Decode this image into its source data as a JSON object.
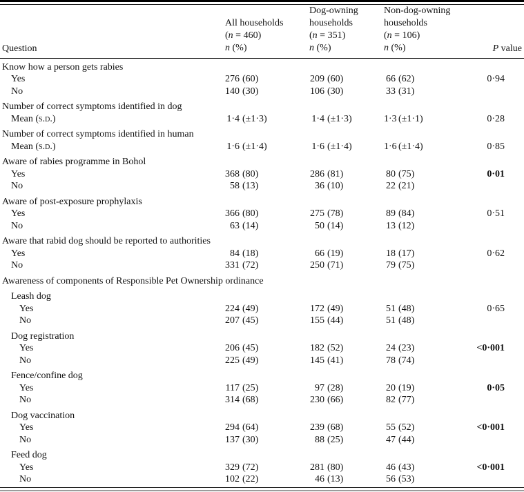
{
  "header": {
    "question": "Question",
    "p_value": [
      {
        "t": "P",
        "i": true
      },
      {
        "t": " value"
      }
    ],
    "cols": [
      {
        "lines": [
          [
            {
              "t": "All households"
            }
          ],
          [
            {
              "t": "("
            },
            {
              "t": "n",
              "i": true
            },
            {
              "t": " = 460)"
            }
          ],
          [
            {
              "t": "n",
              "i": true
            },
            {
              "t": " (%)"
            }
          ]
        ]
      },
      {
        "lines": [
          [
            {
              "t": "Dog-owning"
            }
          ],
          [
            {
              "t": "households"
            }
          ],
          [
            {
              "t": "("
            },
            {
              "t": "n",
              "i": true
            },
            {
              "t": " = 351)"
            }
          ],
          [
            {
              "t": "n",
              "i": true
            },
            {
              "t": " (%)"
            }
          ]
        ]
      },
      {
        "lines": [
          [
            {
              "t": "Non-dog-owning"
            }
          ],
          [
            {
              "t": "households"
            }
          ],
          [
            {
              "t": "("
            },
            {
              "t": "n",
              "i": true
            },
            {
              "t": " = 106)"
            }
          ],
          [
            {
              "t": "n",
              "i": true
            },
            {
              "t": " (%)"
            }
          ]
        ]
      }
    ]
  },
  "table": {
    "rows": [
      {
        "kind": "section",
        "indent": 0,
        "label": "Know how a person gets rabies"
      },
      {
        "kind": "data",
        "indent": 1,
        "label": "Yes",
        "cells": [
          [
            "276",
            "(60)"
          ],
          [
            "209",
            "(60)"
          ],
          [
            "66",
            "(62)"
          ]
        ],
        "p": "0·94",
        "pBold": false
      },
      {
        "kind": "data",
        "indent": 1,
        "label": "No",
        "cells": [
          [
            "140",
            "(30)"
          ],
          [
            "106",
            "(30)"
          ],
          [
            "33",
            "(31)"
          ]
        ],
        "p": "",
        "pBold": false
      },
      {
        "kind": "section",
        "indent": 0,
        "label": "Number of correct symptoms identified in dog"
      },
      {
        "kind": "data",
        "indent": 1,
        "label": [
          {
            "t": "Mean ("
          },
          {
            "t": "s.d.",
            "sc": true
          },
          {
            "t": ")"
          }
        ],
        "cells": [
          [
            "1·4",
            "(±1·3)"
          ],
          [
            "1·4",
            "(±1·3)"
          ],
          [
            "1·3",
            "(±1·1)"
          ]
        ],
        "p": "0·28",
        "pBold": false
      },
      {
        "kind": "section",
        "indent": 0,
        "label": "Number of correct symptoms identified in human"
      },
      {
        "kind": "data",
        "indent": 1,
        "label": [
          {
            "t": "Mean ("
          },
          {
            "t": "s.d.",
            "sc": true
          },
          {
            "t": ")"
          }
        ],
        "cells": [
          [
            "1·6",
            "(±1·4)"
          ],
          [
            "1·6",
            "(±1·4)"
          ],
          [
            "1·6",
            "(±1·4)"
          ]
        ],
        "p": "0·85",
        "pBold": false
      },
      {
        "kind": "section",
        "indent": 0,
        "label": "Aware of rabies programme in Bohol"
      },
      {
        "kind": "data",
        "indent": 1,
        "label": "Yes",
        "cells": [
          [
            "368",
            "(80)"
          ],
          [
            "286",
            "(81)"
          ],
          [
            "80",
            "(75)"
          ]
        ],
        "p": "0·01",
        "pBold": true
      },
      {
        "kind": "data",
        "indent": 1,
        "label": "No",
        "cells": [
          [
            "58",
            "(13)"
          ],
          [
            "36",
            "(10)"
          ],
          [
            "22",
            "(21)"
          ]
        ],
        "p": "",
        "pBold": false
      },
      {
        "kind": "section",
        "indent": 0,
        "label": "Aware of post-exposure prophylaxis"
      },
      {
        "kind": "data",
        "indent": 1,
        "label": "Yes",
        "cells": [
          [
            "366",
            "(80)"
          ],
          [
            "275",
            "(78)"
          ],
          [
            "89",
            "(84)"
          ]
        ],
        "p": "0·51",
        "pBold": false
      },
      {
        "kind": "data",
        "indent": 1,
        "label": "No",
        "cells": [
          [
            "63",
            "(14)"
          ],
          [
            "50",
            "(14)"
          ],
          [
            "13",
            "(12)"
          ]
        ],
        "p": "",
        "pBold": false
      },
      {
        "kind": "section",
        "indent": 0,
        "label": "Aware that rabid dog should be reported to authorities"
      },
      {
        "kind": "data",
        "indent": 1,
        "label": "Yes",
        "cells": [
          [
            "84",
            "(18)"
          ],
          [
            "66",
            "(19)"
          ],
          [
            "18",
            "(17)"
          ]
        ],
        "p": "0·62",
        "pBold": false
      },
      {
        "kind": "data",
        "indent": 1,
        "label": "No",
        "cells": [
          [
            "331",
            "(72)"
          ],
          [
            "250",
            "(71)"
          ],
          [
            "79",
            "(75)"
          ]
        ],
        "p": "",
        "pBold": false
      },
      {
        "kind": "section",
        "indent": 0,
        "label": "Awareness of components of Responsible Pet Ownership ordinance"
      },
      {
        "kind": "section",
        "indent": 1,
        "label": "Leash dog"
      },
      {
        "kind": "data",
        "indent": 2,
        "label": "Yes",
        "cells": [
          [
            "224",
            "(49)"
          ],
          [
            "172",
            "(49)"
          ],
          [
            "51",
            "(48)"
          ]
        ],
        "p": "0·65",
        "pBold": false
      },
      {
        "kind": "data",
        "indent": 2,
        "label": "No",
        "cells": [
          [
            "207",
            "(45)"
          ],
          [
            "155",
            "(44)"
          ],
          [
            "51",
            "(48)"
          ]
        ],
        "p": "",
        "pBold": false
      },
      {
        "kind": "section",
        "indent": 1,
        "label": "Dog registration"
      },
      {
        "kind": "data",
        "indent": 2,
        "label": "Yes",
        "cells": [
          [
            "206",
            "(45)"
          ],
          [
            "182",
            "(52)"
          ],
          [
            "24",
            "(23)"
          ]
        ],
        "p": "<0·001",
        "pBold": true
      },
      {
        "kind": "data",
        "indent": 2,
        "label": "No",
        "cells": [
          [
            "225",
            "(49)"
          ],
          [
            "145",
            "(41)"
          ],
          [
            "78",
            "(74)"
          ]
        ],
        "p": "",
        "pBold": false
      },
      {
        "kind": "section",
        "indent": 1,
        "label": "Fence/confine dog"
      },
      {
        "kind": "data",
        "indent": 2,
        "label": "Yes",
        "cells": [
          [
            "117",
            "(25)"
          ],
          [
            "97",
            "(28)"
          ],
          [
            "20",
            "(19)"
          ]
        ],
        "p": "0·05",
        "pBold": true
      },
      {
        "kind": "data",
        "indent": 2,
        "label": "No",
        "cells": [
          [
            "314",
            "(68)"
          ],
          [
            "230",
            "(66)"
          ],
          [
            "82",
            "(77)"
          ]
        ],
        "p": "",
        "pBold": false
      },
      {
        "kind": "section",
        "indent": 1,
        "label": "Dog vaccination"
      },
      {
        "kind": "data",
        "indent": 2,
        "label": "Yes",
        "cells": [
          [
            "294",
            "(64)"
          ],
          [
            "239",
            "(68)"
          ],
          [
            "55",
            "(52)"
          ]
        ],
        "p": "<0·001",
        "pBold": true
      },
      {
        "kind": "data",
        "indent": 2,
        "label": "No",
        "cells": [
          [
            "137",
            "(30)"
          ],
          [
            "88",
            "(25)"
          ],
          [
            "47",
            "(44)"
          ]
        ],
        "p": "",
        "pBold": false
      },
      {
        "kind": "section",
        "indent": 1,
        "label": "Feed dog"
      },
      {
        "kind": "data",
        "indent": 2,
        "label": "Yes",
        "cells": [
          [
            "329",
            "(72)"
          ],
          [
            "281",
            "(80)"
          ],
          [
            "46",
            "(43)"
          ]
        ],
        "p": "<0·001",
        "pBold": true
      },
      {
        "kind": "data",
        "indent": 2,
        "label": "No",
        "cells": [
          [
            "102",
            "(22)"
          ],
          [
            "46",
            "(13)"
          ],
          [
            "56",
            "(53)"
          ]
        ],
        "p": "",
        "pBold": false
      }
    ]
  }
}
